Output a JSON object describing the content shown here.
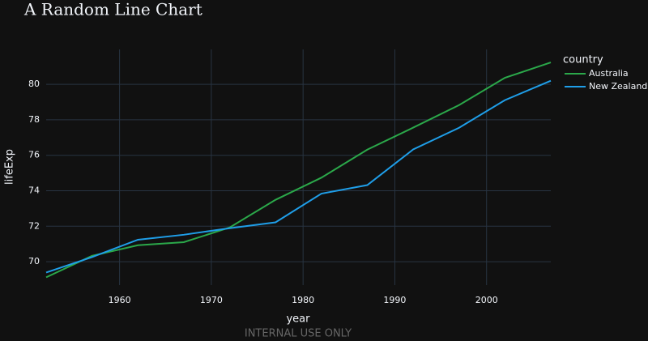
{
  "chart_data": {
    "type": "line",
    "title": "A Random Line Chart",
    "x_label": "year",
    "y_label": "lifeExp",
    "legend_title": "country",
    "annotation": "INTERNAL USE ONLY",
    "x": [
      1952,
      1957,
      1962,
      1967,
      1972,
      1977,
      1982,
      1987,
      1992,
      1997,
      2002,
      2007
    ],
    "series": [
      {
        "name": "Australia",
        "color": "#2ba84a",
        "values": [
          69.12,
          70.33,
          70.93,
          71.1,
          71.93,
          73.49,
          74.74,
          76.32,
          77.56,
          78.83,
          80.37,
          81.235
        ]
      },
      {
        "name": "New Zealand",
        "color": "#1f9ee8",
        "values": [
          69.39,
          70.26,
          71.24,
          71.52,
          71.89,
          72.22,
          73.84,
          74.32,
          76.33,
          77.55,
          79.11,
          80.204
        ]
      }
    ],
    "xlim": [
      1952,
      2007
    ],
    "xticks": [
      1960,
      1970,
      1980,
      1990,
      2000
    ],
    "ylim": [
      68.68,
      81.97
    ],
    "yticks": [
      70,
      72,
      74,
      76,
      78,
      80
    ],
    "grid": true,
    "legend_position": "right"
  }
}
